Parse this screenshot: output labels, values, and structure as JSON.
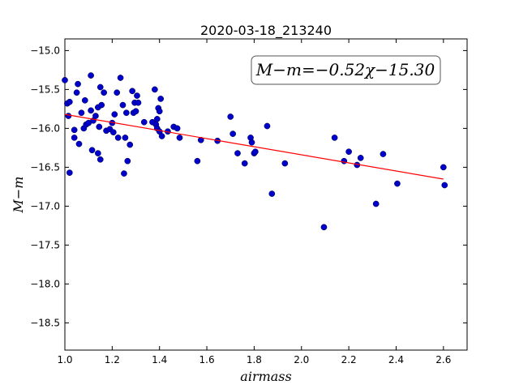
{
  "chart_data": {
    "type": "scatter",
    "title": "2020-03-18_213240",
    "xlabel": "airmass",
    "ylabel": "M−m",
    "xlim": [
      1.0,
      2.7
    ],
    "ylim": [
      -18.85,
      -14.85
    ],
    "y_inverted": true,
    "x_ticks": [
      "1.0",
      "1.2",
      "1.4",
      "1.6",
      "1.8",
      "2.0",
      "2.2",
      "2.4",
      "2.6"
    ],
    "x_tick_values": [
      1.0,
      1.2,
      1.4,
      1.6,
      1.8,
      2.0,
      2.2,
      2.4,
      2.6
    ],
    "y_ticks": [
      "−15.0",
      "−15.5",
      "−16.0",
      "−16.5",
      "−17.0",
      "−17.5",
      "−18.0",
      "−18.5"
    ],
    "y_tick_values": [
      -15.0,
      -15.5,
      -16.0,
      -16.5,
      -17.0,
      -17.5,
      -18.0,
      -18.5
    ],
    "grid": false,
    "annotation": "M−m=−0.52χ−15.30",
    "point_color": "#0000cc",
    "fit_color": "#ff0000",
    "fit": {
      "slope": -0.52,
      "intercept": -15.3,
      "x_range": [
        1.0,
        2.6
      ]
    },
    "points": [
      [
        1.0,
        -15.38
      ],
      [
        1.01,
        -15.68
      ],
      [
        1.02,
        -15.66
      ],
      [
        1.015,
        -15.84
      ],
      [
        1.02,
        -16.57
      ],
      [
        1.04,
        -16.02
      ],
      [
        1.04,
        -16.12
      ],
      [
        1.05,
        -15.54
      ],
      [
        1.055,
        -15.43
      ],
      [
        1.06,
        -16.2
      ],
      [
        1.07,
        -15.8
      ],
      [
        1.08,
        -16.0
      ],
      [
        1.085,
        -15.64
      ],
      [
        1.09,
        -15.95
      ],
      [
        1.1,
        -15.93
      ],
      [
        1.11,
        -15.32
      ],
      [
        1.11,
        -15.77
      ],
      [
        1.115,
        -16.28
      ],
      [
        1.12,
        -15.9
      ],
      [
        1.13,
        -15.84
      ],
      [
        1.14,
        -15.73
      ],
      [
        1.14,
        -16.32
      ],
      [
        1.145,
        -15.98
      ],
      [
        1.15,
        -16.4
      ],
      [
        1.15,
        -15.47
      ],
      [
        1.155,
        -15.7
      ],
      [
        1.165,
        -15.54
      ],
      [
        1.175,
        -16.03
      ],
      [
        1.19,
        -16.01
      ],
      [
        1.2,
        -15.93
      ],
      [
        1.205,
        -16.05
      ],
      [
        1.21,
        -15.82
      ],
      [
        1.22,
        -15.54
      ],
      [
        1.225,
        -16.12
      ],
      [
        1.235,
        -15.35
      ],
      [
        1.245,
        -15.7
      ],
      [
        1.25,
        -16.58
      ],
      [
        1.255,
        -16.12
      ],
      [
        1.26,
        -15.8
      ],
      [
        1.265,
        -16.42
      ],
      [
        1.275,
        -16.21
      ],
      [
        1.285,
        -15.52
      ],
      [
        1.29,
        -15.8
      ],
      [
        1.295,
        -15.67
      ],
      [
        1.3,
        -15.78
      ],
      [
        1.305,
        -15.58
      ],
      [
        1.31,
        -15.67
      ],
      [
        1.335,
        -15.92
      ],
      [
        1.37,
        -15.92
      ],
      [
        1.38,
        -15.5
      ],
      [
        1.385,
        -15.95
      ],
      [
        1.39,
        -16.0
      ],
      [
        1.39,
        -15.88
      ],
      [
        1.395,
        -15.74
      ],
      [
        1.4,
        -16.04
      ],
      [
        1.4,
        -15.78
      ],
      [
        1.405,
        -15.62
      ],
      [
        1.41,
        -16.1
      ],
      [
        1.435,
        -16.04
      ],
      [
        1.46,
        -15.98
      ],
      [
        1.475,
        -16.0
      ],
      [
        1.485,
        -16.12
      ],
      [
        1.56,
        -16.42
      ],
      [
        1.575,
        -16.15
      ],
      [
        1.645,
        -16.16
      ],
      [
        1.7,
        -15.85
      ],
      [
        1.71,
        -16.07
      ],
      [
        1.73,
        -16.32
      ],
      [
        1.76,
        -16.45
      ],
      [
        1.785,
        -16.12
      ],
      [
        1.79,
        -16.18
      ],
      [
        1.8,
        -16.32
      ],
      [
        1.805,
        -16.3
      ],
      [
        1.855,
        -15.97
      ],
      [
        1.875,
        -16.84
      ],
      [
        1.93,
        -16.45
      ],
      [
        2.095,
        -17.27
      ],
      [
        2.14,
        -16.12
      ],
      [
        2.18,
        -16.42
      ],
      [
        2.2,
        -16.3
      ],
      [
        2.235,
        -16.47
      ],
      [
        2.25,
        -16.38
      ],
      [
        2.315,
        -16.97
      ],
      [
        2.345,
        -16.33
      ],
      [
        2.405,
        -16.71
      ],
      [
        2.6,
        -16.5
      ],
      [
        2.605,
        -16.73
      ]
    ]
  }
}
